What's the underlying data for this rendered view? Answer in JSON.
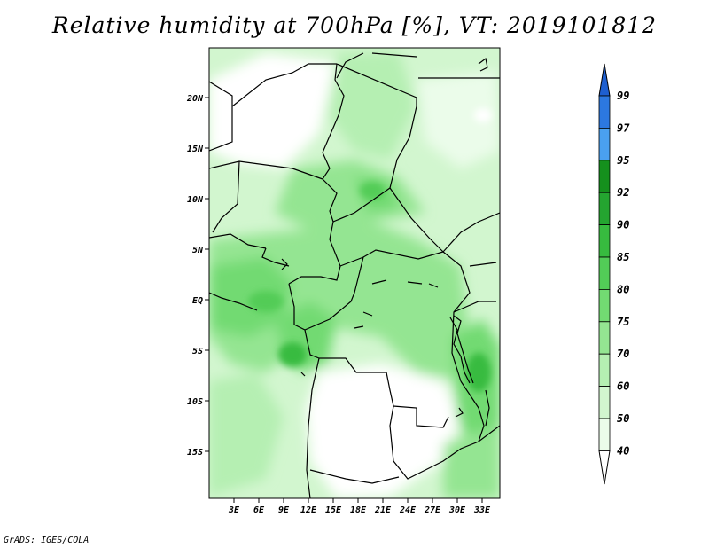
{
  "title": "Relative humidity at 700hPa [%], VT: 2019101812",
  "footer": "GrADS: IGES/COLA",
  "map": {
    "variable": "Relative humidity",
    "level": "700hPa",
    "units": "%",
    "valid_time": "2019101812",
    "lat_labels": [
      "20N",
      "15N",
      "10N",
      "5N",
      "EQ",
      "5S",
      "10S",
      "15S"
    ],
    "lon_labels": [
      "3E",
      "6E",
      "9E",
      "12E",
      "15E",
      "18E",
      "21E",
      "24E",
      "27E",
      "30E",
      "33E"
    ]
  },
  "colorbar": {
    "levels": [
      "99",
      "97",
      "95",
      "92",
      "90",
      "85",
      "80",
      "75",
      "70",
      "60",
      "50",
      "40"
    ],
    "colors": [
      "#1e5fd0",
      "#2c78e0",
      "#4aa0f0",
      "#15901d",
      "#24a530",
      "#37bb3f",
      "#52cc57",
      "#72da72",
      "#94e592",
      "#b5efb2",
      "#d2f6cf",
      "#ebfcea",
      "#ffffff"
    ]
  }
}
